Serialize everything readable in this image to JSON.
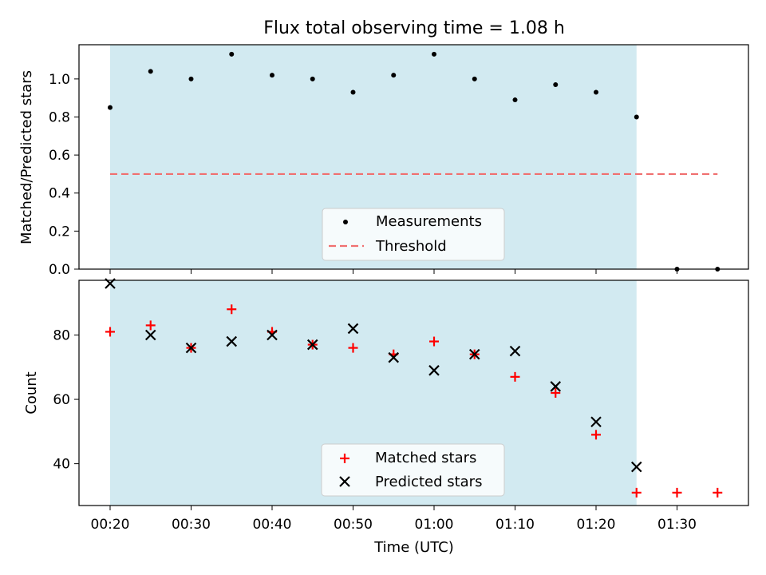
{
  "chart_data": [
    {
      "type": "scatter",
      "title": "Flux total observing time = 1.08 h",
      "xlabel": "",
      "ylabel": "Matched/Predicted stars",
      "ylim": [
        0,
        1.18
      ],
      "yticks": [
        0.0,
        0.2,
        0.4,
        0.6,
        0.8,
        1.0
      ],
      "x_minutes": [
        20,
        25,
        30,
        35,
        40,
        45,
        50,
        55,
        60,
        65,
        70,
        75,
        80,
        85,
        90,
        95
      ],
      "series": [
        {
          "name": "Measurements",
          "kind": "point",
          "color": "#000000",
          "x": [
            "00:20",
            "00:25",
            "00:30",
            "00:35",
            "00:40",
            "00:45",
            "00:50",
            "00:55",
            "01:00",
            "01:05",
            "01:10",
            "01:15",
            "01:20",
            "01:25",
            "01:30",
            "01:35"
          ],
          "values": [
            0.85,
            1.04,
            1.0,
            1.13,
            1.02,
            1.0,
            0.93,
            1.02,
            1.13,
            1.0,
            0.89,
            0.97,
            0.93,
            0.8,
            0.0,
            0.0
          ]
        },
        {
          "name": "Threshold",
          "kind": "dashed-line",
          "color": "#f07070",
          "x": [
            "00:20",
            "01:35"
          ],
          "values": [
            0.5,
            0.5
          ]
        }
      ],
      "shaded_span": {
        "x": [
          "00:20",
          "01:25"
        ],
        "color": "#add8e6"
      },
      "legend": "lower-center",
      "grid": false
    },
    {
      "type": "scatter",
      "title": "",
      "xlabel": "Time (UTC)",
      "ylabel": "Count",
      "ylim": [
        27,
        97
      ],
      "yticks": [
        40,
        60,
        80
      ],
      "xticks": [
        "00:20",
        "00:30",
        "00:40",
        "00:50",
        "01:00",
        "01:10",
        "01:20",
        "01:30"
      ],
      "series": [
        {
          "name": "Matched stars",
          "marker": "plus",
          "color": "#ff0000",
          "x": [
            "00:20",
            "00:25",
            "00:30",
            "00:35",
            "00:40",
            "00:45",
            "00:50",
            "00:55",
            "01:00",
            "01:05",
            "01:10",
            "01:15",
            "01:20",
            "01:25",
            "01:30",
            "01:35"
          ],
          "values": [
            81,
            83,
            76,
            88,
            81,
            77,
            76,
            74,
            78,
            74,
            67,
            62,
            49,
            31,
            31,
            31
          ]
        },
        {
          "name": "Predicted stars",
          "marker": "x",
          "color": "#000000",
          "x": [
            "00:20",
            "00:25",
            "00:30",
            "00:35",
            "00:40",
            "00:45",
            "00:50",
            "00:55",
            "01:00",
            "01:05",
            "01:10",
            "01:15",
            "01:20",
            "01:25"
          ],
          "values": [
            96,
            80,
            76,
            78,
            80,
            77,
            82,
            73,
            69,
            74,
            75,
            64,
            53,
            39
          ]
        }
      ],
      "shaded_span": {
        "x": [
          "00:20",
          "01:25"
        ],
        "color": "#add8e6"
      },
      "legend": "lower-center",
      "grid": false
    }
  ]
}
